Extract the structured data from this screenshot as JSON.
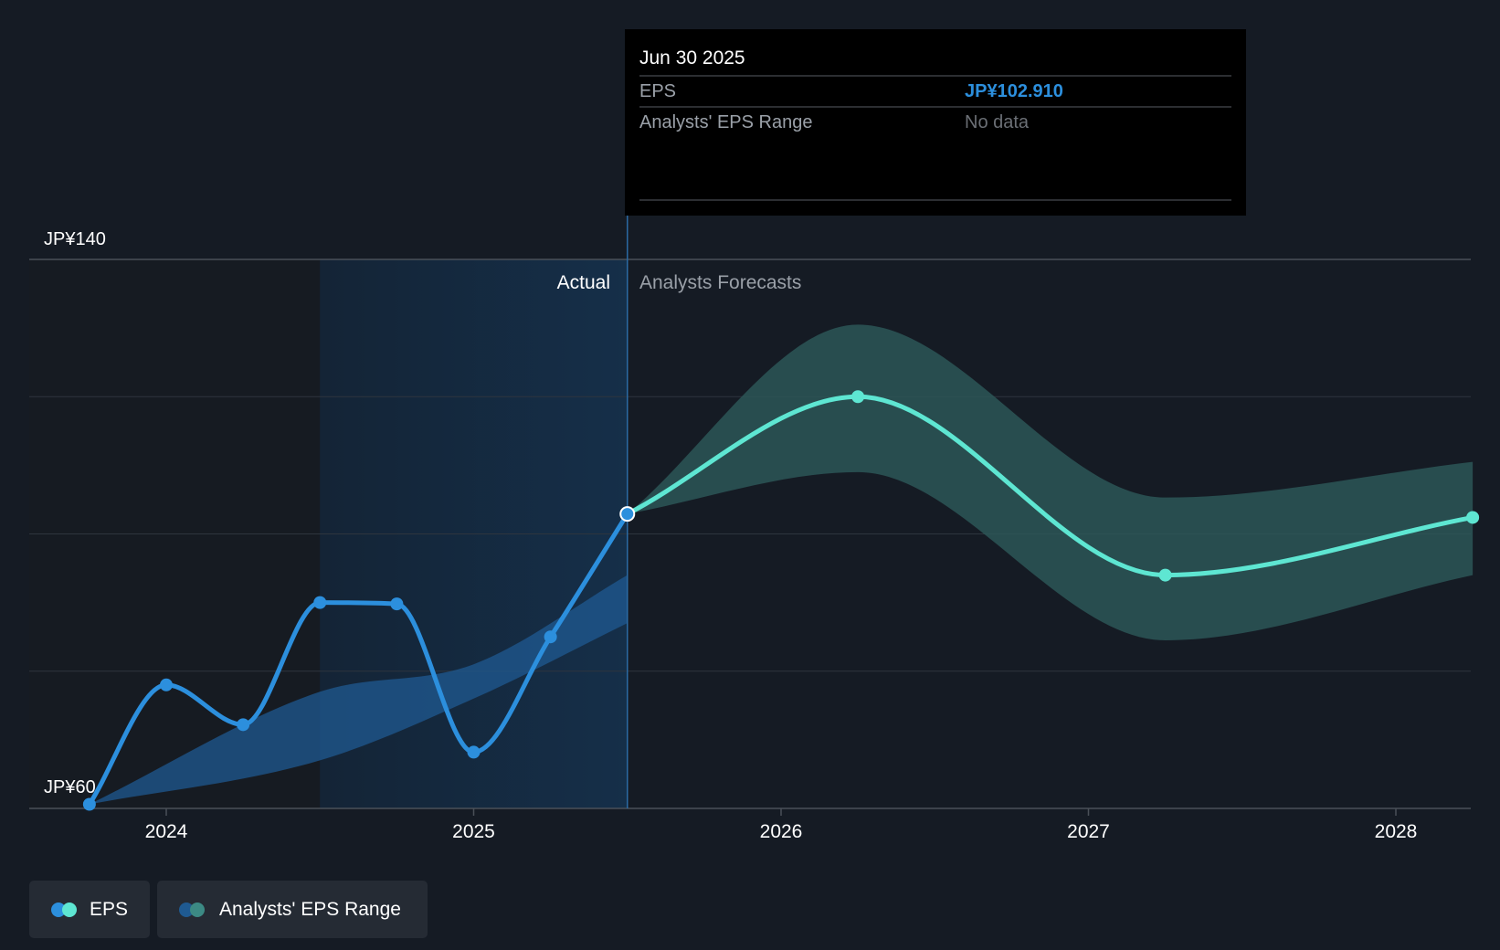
{
  "chart_data": {
    "type": "line",
    "y_axis": {
      "labels": [
        "JP¥140",
        "JP¥60"
      ],
      "min": 60,
      "max": 140,
      "gridlines": [
        60,
        80,
        100,
        120,
        140
      ]
    },
    "x_axis": {
      "labels": [
        "2024",
        "2025",
        "2026",
        "2027",
        "2028"
      ],
      "range": [
        2023.7,
        2028.25
      ]
    },
    "regions": {
      "actual_label": "Actual",
      "forecast_label": "Analysts Forecasts",
      "past_start": 2024.5,
      "divider": 2025.5
    },
    "series": [
      {
        "name": "EPS",
        "kind": "actual",
        "color": "#2c8fdd",
        "points": [
          {
            "x": 2023.75,
            "y": 60.6
          },
          {
            "x": 2024.0,
            "y": 78.0
          },
          {
            "x": 2024.25,
            "y": 72.2
          },
          {
            "x": 2024.5,
            "y": 90.0
          },
          {
            "x": 2024.75,
            "y": 89.8
          },
          {
            "x": 2025.0,
            "y": 68.2
          },
          {
            "x": 2025.25,
            "y": 85.0
          },
          {
            "x": 2025.5,
            "y": 102.91
          }
        ]
      },
      {
        "name": "EPS forecast",
        "kind": "forecast",
        "color": "#5ee6d2",
        "points": [
          {
            "x": 2025.5,
            "y": 102.91
          },
          {
            "x": 2026.25,
            "y": 120.0
          },
          {
            "x": 2027.25,
            "y": 94.0
          },
          {
            "x": 2028.25,
            "y": 102.4
          }
        ]
      }
    ],
    "ranges": [
      {
        "name": "Analysts' EPS Range (past)",
        "color": "#1f5a91",
        "upper": [
          {
            "x": 2023.75,
            "y": 60.6
          },
          {
            "x": 2024.5,
            "y": 77.0
          },
          {
            "x": 2025.0,
            "y": 81.0
          },
          {
            "x": 2025.5,
            "y": 94.0
          }
        ],
        "lower": [
          {
            "x": 2023.75,
            "y": 60.6
          },
          {
            "x": 2024.5,
            "y": 67.0
          },
          {
            "x": 2025.0,
            "y": 76.0
          },
          {
            "x": 2025.5,
            "y": 87.0
          }
        ]
      },
      {
        "name": "Analysts' EPS Range (forecast)",
        "color": "#2d5a5a",
        "upper": [
          {
            "x": 2025.5,
            "y": 102.91
          },
          {
            "x": 2026.25,
            "y": 130.5
          },
          {
            "x": 2027.25,
            "y": 105.3
          },
          {
            "x": 2028.25,
            "y": 110.5
          }
        ],
        "lower": [
          {
            "x": 2025.5,
            "y": 102.91
          },
          {
            "x": 2026.25,
            "y": 109.0
          },
          {
            "x": 2027.25,
            "y": 84.5
          },
          {
            "x": 2028.25,
            "y": 94.0
          }
        ]
      }
    ]
  },
  "tooltip": {
    "date": "Jun 30 2025",
    "rows": [
      {
        "label": "EPS",
        "value": "JP¥102.910",
        "value_color": "#2c8fdd"
      },
      {
        "label": "Analysts' EPS Range",
        "value": "No data",
        "value_color": "#6b6f75"
      }
    ]
  },
  "legend": {
    "items": [
      {
        "label": "EPS",
        "colors": [
          "#2c8fdd",
          "#5ee6d2"
        ]
      },
      {
        "label": "Analysts' EPS Range",
        "colors": [
          "#1f5a91",
          "#3c8a84"
        ]
      }
    ]
  }
}
